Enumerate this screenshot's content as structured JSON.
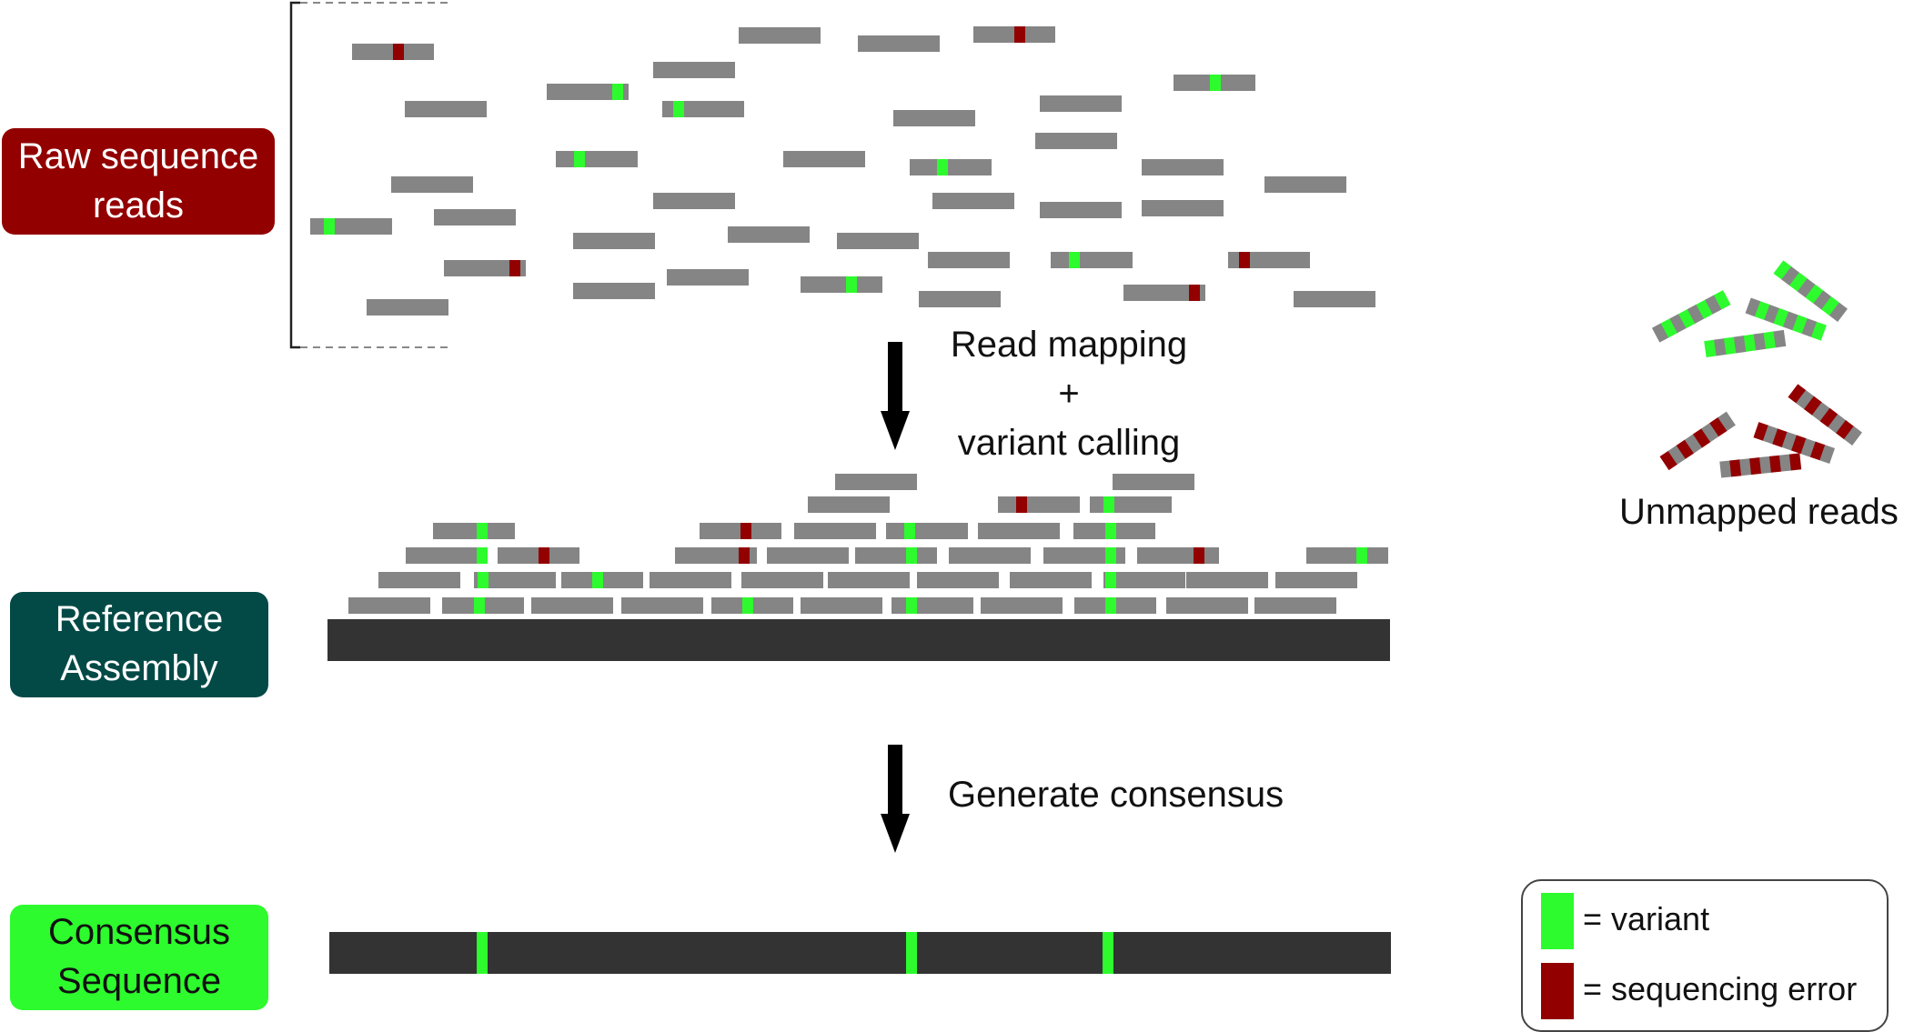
{
  "labels": {
    "raw_reads": "Raw sequence\nreads",
    "reference": "Reference\nAssembly",
    "consensus": "Consensus\nSequence"
  },
  "steps": {
    "mapping": "Read mapping\n+\nvariant calling",
    "consensus": "Generate consensus"
  },
  "unmapped_label": "Unmapped reads",
  "legend": {
    "variant": "= variant",
    "error": "= sequencing error"
  },
  "colors": {
    "read": "#858585",
    "variant": "#2dfb2d",
    "error": "#920000",
    "reference": "#333333",
    "raw_label": "#920000",
    "reference_label": "#034a47",
    "consensus_label": "#2dfb2d"
  }
}
